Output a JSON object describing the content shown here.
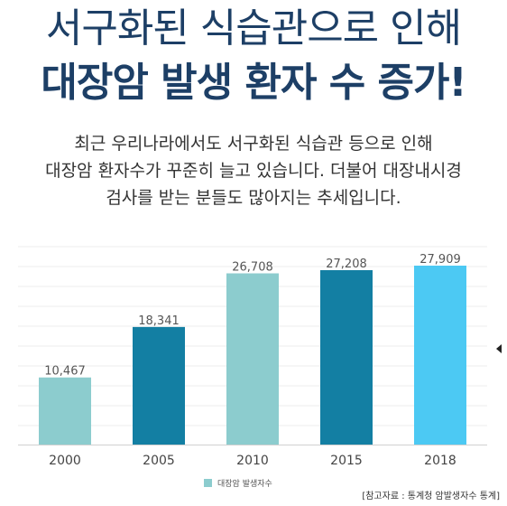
{
  "headline": {
    "line1": "서구화된 식습관으로 인해",
    "line2": "대장암 발생 환자 수 증가!"
  },
  "description": {
    "lines": [
      "최근 우리나라에서도 서구화된 식습관 등으로 인해",
      "대장암 환자수가 꾸준히 늘고 있습니다. 더불어 대장내시경",
      "검사를 받는 분들도 많아지는 추세입니다."
    ]
  },
  "source": "[참고자료 : 통계청 암발생자수 통계]",
  "chart_data": {
    "type": "bar",
    "categories": [
      "2000",
      "2005",
      "2010",
      "2015",
      "2018"
    ],
    "values": [
      10467,
      18341,
      26708,
      27208,
      27909
    ],
    "value_labels": [
      "10,467",
      "18,341",
      "26,708",
      "27,208",
      "27,909"
    ],
    "bar_colors": [
      "#8cccce",
      "#137fa3",
      "#8cccce",
      "#137fa3",
      "#4cc9f3"
    ],
    "series": [
      {
        "name": "대장암 발생자수",
        "values": [
          10467,
          18341,
          26708,
          27208,
          27909
        ]
      }
    ],
    "legend_color": "#8cccce",
    "legend_position": "bottom",
    "grid": true,
    "ylim": [
      0,
      28000
    ]
  }
}
